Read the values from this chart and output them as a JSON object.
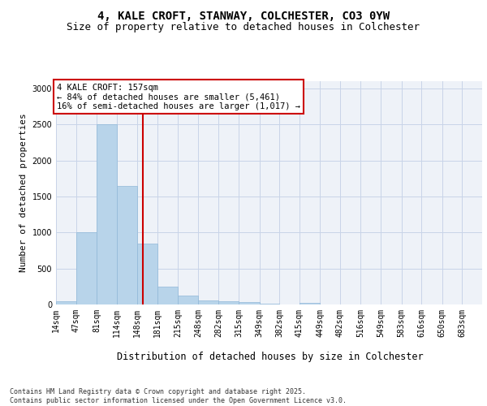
{
  "title_line1": "4, KALE CROFT, STANWAY, COLCHESTER, CO3 0YW",
  "title_line2": "Size of property relative to detached houses in Colchester",
  "xlabel": "Distribution of detached houses by size in Colchester",
  "ylabel": "Number of detached properties",
  "bin_labels": [
    "14sqm",
    "47sqm",
    "81sqm",
    "114sqm",
    "148sqm",
    "181sqm",
    "215sqm",
    "248sqm",
    "282sqm",
    "315sqm",
    "349sqm",
    "382sqm",
    "415sqm",
    "449sqm",
    "482sqm",
    "516sqm",
    "549sqm",
    "583sqm",
    "616sqm",
    "650sqm",
    "683sqm"
  ],
  "bin_edges": [
    14,
    47,
    81,
    114,
    148,
    181,
    215,
    248,
    282,
    315,
    349,
    382,
    415,
    449,
    482,
    516,
    549,
    583,
    616,
    650,
    683,
    716
  ],
  "bar_heights": [
    50,
    1000,
    2500,
    1650,
    850,
    250,
    120,
    60,
    50,
    30,
    10,
    0,
    20,
    5,
    0,
    0,
    0,
    0,
    0,
    0,
    0
  ],
  "bar_color": "#b8d4ea",
  "bar_edgecolor": "#90b8d8",
  "property_size": 157,
  "vline_color": "#cc0000",
  "annotation_text": "4 KALE CROFT: 157sqm\n← 84% of detached houses are smaller (5,461)\n16% of semi-detached houses are larger (1,017) →",
  "annotation_box_color": "#cc0000",
  "ylim": [
    0,
    3100
  ],
  "yticks": [
    0,
    500,
    1000,
    1500,
    2000,
    2500,
    3000
  ],
  "grid_color": "#c8d4e8",
  "background_color": "#eef2f8",
  "footnote": "Contains HM Land Registry data © Crown copyright and database right 2025.\nContains public sector information licensed under the Open Government Licence v3.0.",
  "title_fontsize": 10,
  "subtitle_fontsize": 9,
  "tick_fontsize": 7,
  "ylabel_fontsize": 8,
  "xlabel_fontsize": 8.5,
  "annotation_fontsize": 7.5
}
